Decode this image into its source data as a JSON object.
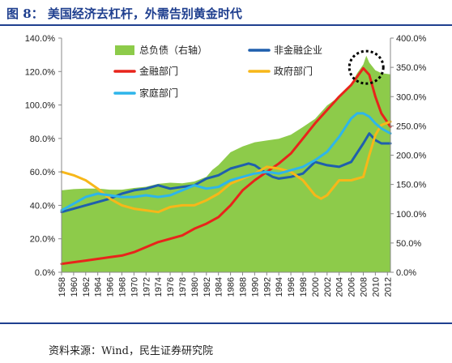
{
  "figure_title": "图 8： 美国经济去杠杆，外需告别黄金时代",
  "source": "资料来源：Wind，民生证券研究院",
  "chart_data": {
    "type": "line",
    "title": "",
    "y_left": {
      "min": 0,
      "max": 140,
      "step": 20,
      "tick_labels": [
        "0.0%",
        "20.0%",
        "40.0%",
        "60.0%",
        "80.0%",
        "100.0%",
        "120.0%",
        "140.0%"
      ]
    },
    "y_right": {
      "min": 0,
      "max": 400,
      "step": 50,
      "tick_labels": [
        "0.0%",
        "50.0%",
        "100.0%",
        "150.0%",
        "200.0%",
        "250.0%",
        "300.0%",
        "350.0%",
        "400.0%"
      ]
    },
    "x_tick_labels": [
      "1958",
      "1960",
      "1962",
      "1964",
      "1966",
      "1968",
      "1970",
      "1972",
      "1974",
      "1976",
      "1978",
      "1980",
      "1982",
      "1984",
      "1986",
      "1988",
      "1990",
      "1992",
      "1994",
      "1996",
      "1998",
      "2000",
      "2002",
      "2004",
      "2006",
      "2008",
      "2010",
      "2012"
    ],
    "x_range": [
      1958,
      2012.5
    ],
    "grid": false,
    "legend_placement": "top",
    "series": [
      {
        "name": "总负债（右轴）",
        "kind": "area",
        "axis": "right",
        "color": "#8dcb4a",
        "x": [
          1958,
          1960,
          1962,
          1964,
          1966,
          1968,
          1970,
          1972,
          1974,
          1976,
          1978,
          1980,
          1982,
          1983,
          1984,
          1986,
          1988,
          1990,
          1992,
          1994,
          1996,
          1998,
          2000,
          2002,
          2004,
          2006,
          2007,
          2008,
          2008.5,
          2009,
          2010,
          2011,
          2012.5
        ],
        "values": [
          140,
          142,
          143,
          143,
          141,
          141,
          144,
          146,
          151,
          153,
          152,
          155,
          163,
          175,
          183,
          205,
          215,
          222,
          225,
          228,
          235,
          248,
          262,
          285,
          300,
          322,
          340,
          355,
          370,
          358,
          345,
          340,
          338
        ]
      },
      {
        "name": "非金融企业",
        "kind": "line",
        "axis": "left",
        "color": "#1f5fad",
        "x": [
          1958,
          1960,
          1962,
          1964,
          1966,
          1968,
          1970,
          1972,
          1974,
          1976,
          1978,
          1980,
          1982,
          1984,
          1986,
          1988,
          1989,
          1990,
          1992,
          1993,
          1994,
          1996,
          1998,
          2000,
          2002,
          2004,
          2006,
          2008,
          2009,
          2010,
          2011,
          2012.5
        ],
        "values": [
          36,
          38,
          40,
          42,
          44,
          47,
          49,
          50,
          52,
          50,
          51,
          52,
          56,
          58,
          62,
          64,
          65,
          64,
          59,
          57,
          56,
          57,
          59,
          66,
          64,
          63,
          66,
          77,
          83,
          79,
          77,
          77
        ]
      },
      {
        "name": "金融部门",
        "kind": "line",
        "axis": "left",
        "color": "#e8241b",
        "x": [
          1958,
          1960,
          1962,
          1964,
          1966,
          1968,
          1970,
          1972,
          1974,
          1976,
          1978,
          1980,
          1982,
          1984,
          1986,
          1988,
          1990,
          1992,
          1994,
          1996,
          1998,
          2000,
          2002,
          2004,
          2006,
          2008,
          2009,
          2010,
          2011,
          2012.5
        ],
        "values": [
          5,
          6,
          7,
          8,
          9,
          10,
          12,
          15,
          18,
          20,
          22,
          26,
          29,
          33,
          40,
          49,
          55,
          60,
          65,
          71,
          80,
          89,
          97,
          105,
          112,
          122,
          118,
          105,
          95,
          87
        ]
      },
      {
        "name": "政府部门",
        "kind": "line",
        "axis": "left",
        "color": "#f7b719",
        "x": [
          1958,
          1960,
          1962,
          1964,
          1966,
          1968,
          1970,
          1972,
          1974,
          1976,
          1978,
          1980,
          1982,
          1984,
          1986,
          1988,
          1990,
          1992,
          1994,
          1996,
          1998,
          2000,
          2001,
          2002,
          2004,
          2006,
          2008,
          2009,
          2010,
          2011,
          2012.5
        ],
        "values": [
          60,
          58,
          55,
          50,
          44,
          40,
          38,
          37,
          36,
          39,
          40,
          40,
          43,
          47,
          53,
          56,
          59,
          63,
          62,
          60,
          55,
          46,
          44,
          46,
          55,
          55,
          57,
          70,
          82,
          88,
          90
        ]
      },
      {
        "name": "家庭部门",
        "kind": "line",
        "axis": "left",
        "color": "#2eb5ea",
        "x": [
          1958,
          1960,
          1962,
          1964,
          1966,
          1968,
          1970,
          1972,
          1974,
          1976,
          1978,
          1980,
          1982,
          1984,
          1986,
          1988,
          1990,
          1992,
          1994,
          1996,
          1998,
          2000,
          2002,
          2004,
          2006,
          2007,
          2008,
          2009,
          2010,
          2011,
          2012.5
        ],
        "values": [
          37,
          41,
          45,
          47,
          46,
          45,
          45,
          46,
          45,
          46,
          49,
          52,
          50,
          51,
          55,
          57,
          59,
          60,
          59,
          61,
          63,
          67,
          72,
          81,
          92,
          95,
          95,
          93,
          89,
          86,
          83
        ]
      }
    ],
    "annotations": [
      {
        "type": "dashed-ellipse",
        "color": "#000000",
        "x": 2008.5,
        "y_right": 350
      }
    ]
  }
}
